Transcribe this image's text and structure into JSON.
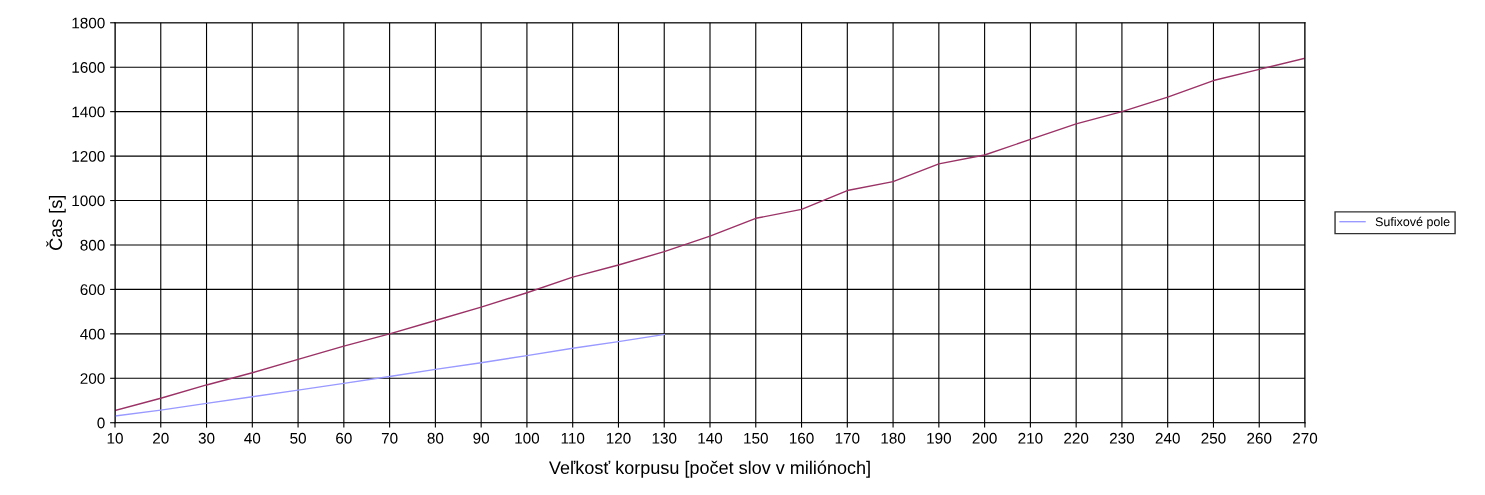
{
  "chart_data": {
    "type": "line",
    "xlabel": "Veľkosť korpusu [počet slov v miliónoch]",
    "ylabel": "Čas [s]",
    "xlim": [
      10,
      270
    ],
    "xticks": [
      10,
      20,
      30,
      40,
      50,
      60,
      70,
      80,
      90,
      100,
      110,
      120,
      130,
      140,
      150,
      160,
      170,
      180,
      190,
      200,
      210,
      220,
      230,
      240,
      250,
      260,
      270
    ],
    "ylim": [
      0,
      1800
    ],
    "yticks": [
      0,
      200,
      400,
      600,
      800,
      1000,
      1200,
      1400,
      1600,
      1800
    ],
    "grid": true,
    "legend": "right",
    "marker": "none",
    "line_style": "solid",
    "series": [
      {
        "name": "Sufixové pole",
        "color": "#9999ff",
        "x": [
          10,
          20,
          30,
          40,
          50,
          60,
          70,
          80,
          90,
          100,
          110,
          120,
          130
        ],
        "values": [
          30,
          57,
          87,
          117,
          147,
          177,
          208,
          240,
          270,
          302,
          335,
          365,
          397
        ]
      },
      {
        "color": "#993366",
        "x": [
          10,
          20,
          30,
          40,
          50,
          60,
          70,
          80,
          90,
          100,
          110,
          120,
          130,
          140,
          150,
          160,
          170,
          180,
          190,
          200,
          210,
          220,
          230,
          240,
          250,
          260,
          270
        ],
        "values": [
          55,
          110,
          170,
          225,
          285,
          345,
          400,
          460,
          520,
          585,
          655,
          710,
          770,
          840,
          920,
          960,
          1045,
          1085,
          1165,
          1205,
          1275,
          1345,
          1400,
          1465,
          1540,
          1590,
          1640
        ]
      }
    ]
  }
}
